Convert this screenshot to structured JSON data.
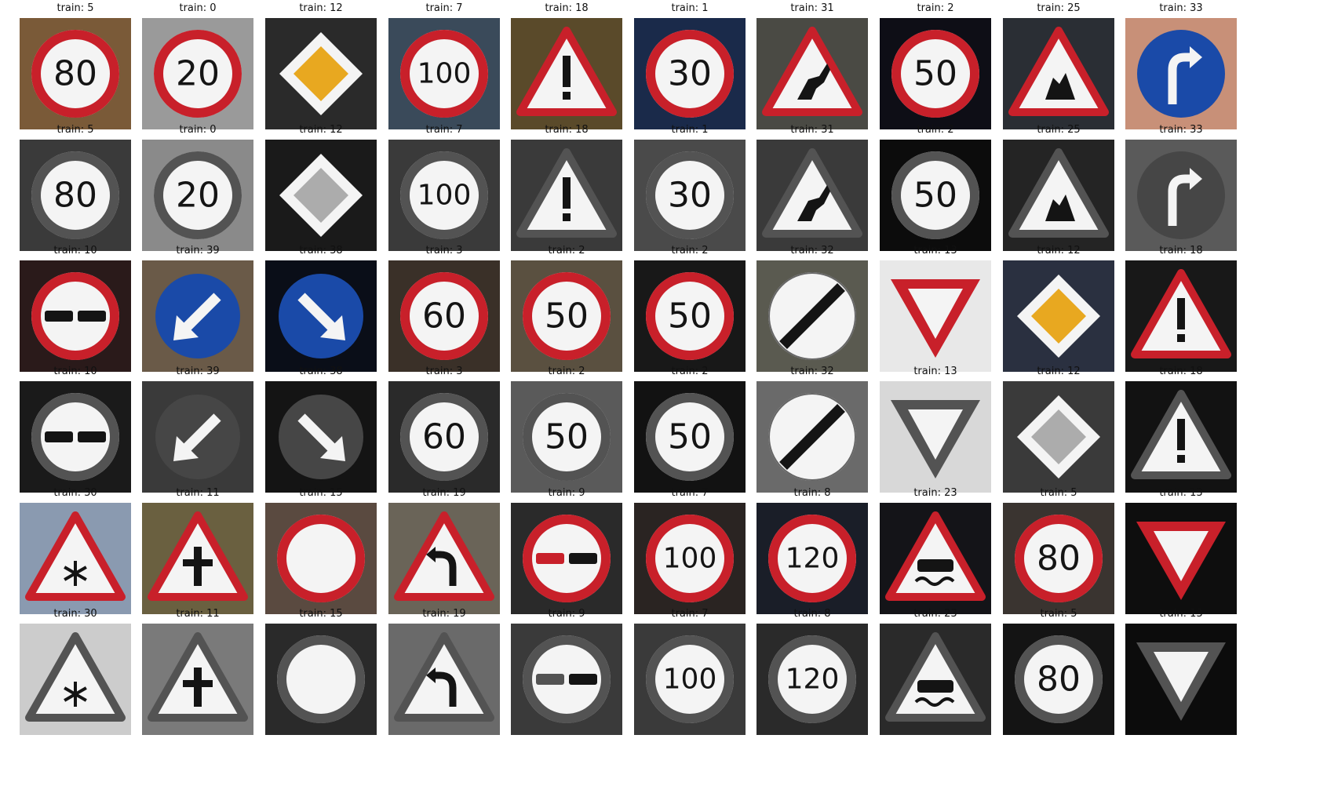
{
  "figure": {
    "rows": [
      {
        "mode": "color",
        "labels": [
          "train: 5",
          "train: 0",
          "train: 12",
          "train: 7",
          "train: 18",
          "train: 1",
          "train: 31",
          "train: 2",
          "train: 25",
          "train: 33"
        ],
        "signs": [
          "speed-80",
          "speed-20",
          "priority-road",
          "speed-100",
          "general-caution",
          "speed-30",
          "wild-animals",
          "speed-50",
          "road-work",
          "turn-right-ahead"
        ]
      },
      {
        "mode": "gray",
        "labels": [
          "train: 5",
          "train: 0",
          "train: 12",
          "train: 7",
          "train: 18",
          "train: 1",
          "train: 31",
          "train: 2",
          "train: 25",
          "train: 33"
        ],
        "signs": [
          "speed-80",
          "speed-20",
          "priority-road",
          "speed-100",
          "general-caution",
          "speed-30",
          "wild-animals",
          "speed-50",
          "road-work",
          "turn-right-ahead"
        ]
      },
      {
        "mode": "color",
        "labels": [
          "train: 10",
          "train: 39",
          "train: 38",
          "train: 3",
          "train: 2",
          "train: 2",
          "train: 32",
          "train: 13",
          "train: 12",
          "train: 18"
        ],
        "signs": [
          "no-passing-trucks",
          "keep-left",
          "keep-right",
          "speed-60",
          "speed-50",
          "speed-50",
          "end-all-limits",
          "yield",
          "priority-road",
          "general-caution"
        ]
      },
      {
        "mode": "gray",
        "labels": [
          "train: 10",
          "train: 39",
          "train: 38",
          "train: 3",
          "train: 2",
          "train: 2",
          "train: 32",
          "train: 13",
          "train: 12",
          "train: 18"
        ],
        "signs": [
          "no-passing-trucks",
          "keep-left",
          "keep-right",
          "speed-60",
          "speed-50",
          "speed-50",
          "end-all-limits",
          "yield",
          "priority-road",
          "general-caution"
        ]
      },
      {
        "mode": "color",
        "labels": [
          "train: 30",
          "train: 11",
          "train: 15",
          "train: 19",
          "train: 9",
          "train: 7",
          "train: 8",
          "train: 23",
          "train: 5",
          "train: 13"
        ],
        "signs": [
          "ice-snow",
          "right-of-way",
          "no-vehicles",
          "curve-left",
          "no-passing",
          "speed-100",
          "speed-120",
          "slippery-road",
          "speed-80",
          "yield"
        ]
      },
      {
        "mode": "gray",
        "labels": [
          "train: 30",
          "train: 11",
          "train: 15",
          "train: 19",
          "train: 9",
          "train: 7",
          "train: 8",
          "train: 23",
          "train: 5",
          "train: 13"
        ],
        "signs": [
          "ice-snow",
          "right-of-way",
          "no-vehicles",
          "curve-left",
          "no-passing",
          "speed-100",
          "speed-120",
          "slippery-road",
          "speed-80",
          "yield"
        ]
      }
    ]
  },
  "sign_text": {
    "speed-80": "80",
    "speed-20": "20",
    "speed-100": "100",
    "speed-30": "30",
    "speed-50": "50",
    "speed-60": "60",
    "speed-120": "120"
  },
  "backgrounds": [
    [
      "#7a5a38",
      "#9a9a9a",
      "#2a2a2a",
      "#3a4a5a",
      "#5a4a2a",
      "#1a2a4a",
      "#4a4a44",
      "#0e0e16",
      "#2a2e34",
      "#c89078"
    ],
    [
      "#3a3a3a",
      "#8a8a8a",
      "#1a1a1a",
      "#3a3a3a",
      "#3a3a3a",
      "#4a4a4a",
      "#3a3a3a",
      "#0c0c0c",
      "#242424",
      "#5a5a5a"
    ],
    [
      "#2a1a1a",
      "#6a5a48",
      "#0a0e18",
      "#3a3028",
      "#5a5040",
      "#181818",
      "#5a5a50",
      "#e8e8e8",
      "#2a3040",
      "#181818"
    ],
    [
      "#1a1a1a",
      "#3a3a3a",
      "#141414",
      "#2a2a2a",
      "#5a5a5a",
      "#121212",
      "#6a6a6a",
      "#d8d8d8",
      "#3a3a3a",
      "#121212"
    ],
    [
      "#8a9ab0",
      "#6a6040",
      "#5a4a40",
      "#6a6458",
      "#2a2a2a",
      "#2a2422",
      "#1a1e28",
      "#141418",
      "#3a3430",
      "#0e0e0e"
    ],
    [
      "#cccccc",
      "#7a7a7a",
      "#2a2a2a",
      "#6a6a6a",
      "#3a3a3a",
      "#3a3a3a",
      "#2a2a2a",
      "#2a2a2a",
      "#141414",
      "#0c0c0c"
    ]
  ],
  "colors": {
    "red": "#c8202a",
    "blue": "#1a4aa8",
    "yellow": "#e8a820",
    "white": "#f4f4f4",
    "black": "#141414"
  }
}
